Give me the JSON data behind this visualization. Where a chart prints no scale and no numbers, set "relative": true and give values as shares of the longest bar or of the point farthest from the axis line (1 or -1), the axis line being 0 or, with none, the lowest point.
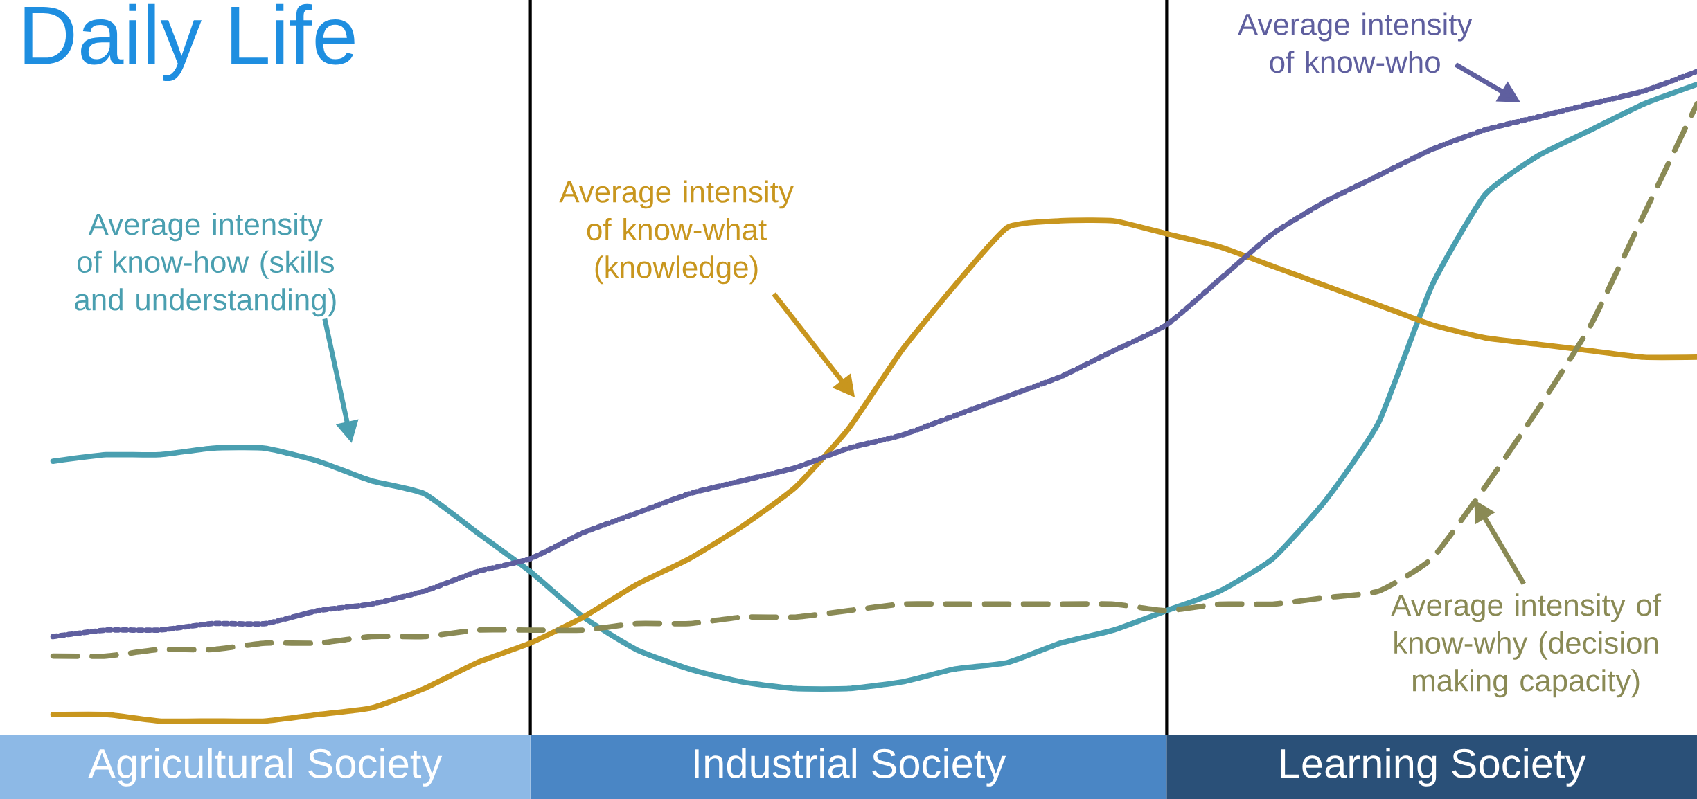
{
  "chart_data": {
    "type": "line",
    "relative": true,
    "title": "Daily Life",
    "marker": "none",
    "categories": [
      null,
      null,
      null,
      null,
      null,
      null,
      null,
      null,
      null,
      null,
      null,
      null,
      null,
      null,
      null,
      null,
      null,
      null,
      null,
      null,
      null,
      null,
      null,
      null,
      null,
      null,
      null,
      null,
      null,
      null,
      null,
      null,
      null
    ],
    "series": [
      {
        "color": "#4a9fb0",
        "line_style": "solid",
        "values": [
          null,
          0.4,
          0.41,
          0.41,
          0.42,
          0.42,
          0.4,
          0.37,
          0.35,
          0.29,
          0.23,
          0.16,
          0.11,
          0.08,
          0.06,
          0.05,
          0.05,
          0.06,
          0.08,
          0.09,
          0.12,
          0.14,
          0.17,
          0.2,
          0.25,
          0.34,
          0.46,
          0.67,
          0.81,
          0.87,
          0.91,
          0.95,
          0.98
        ]
      },
      {
        "color": "#c8961e",
        "line_style": "solid",
        "values": [
          null,
          0.01,
          0.01,
          0.0,
          0.0,
          0.0,
          0.01,
          0.02,
          0.05,
          0.09,
          0.12,
          0.16,
          0.21,
          0.25,
          0.3,
          0.36,
          0.45,
          0.57,
          0.67,
          0.76,
          0.77,
          0.77,
          0.75,
          0.73,
          0.7,
          0.67,
          0.64,
          0.61,
          0.59,
          0.58,
          0.57,
          0.56,
          0.56
        ]
      },
      {
        "color": "#5f5f9f",
        "line_style": "dotted",
        "values": [
          null,
          0.13,
          0.14,
          0.14,
          0.15,
          0.15,
          0.17,
          0.18,
          0.2,
          0.23,
          0.25,
          0.29,
          0.32,
          0.35,
          0.37,
          0.39,
          0.42,
          0.44,
          0.47,
          0.5,
          0.53,
          0.57,
          0.61,
          0.68,
          0.75,
          0.8,
          0.84,
          0.88,
          0.91,
          0.93,
          0.95,
          0.97,
          1
        ]
      },
      {
        "color": "#8a8a55",
        "line_style": "dashed",
        "values": [
          null,
          0.1,
          0.1,
          0.11,
          0.11,
          0.12,
          0.12,
          0.13,
          0.13,
          0.14,
          0.14,
          0.14,
          0.15,
          0.15,
          0.16,
          0.16,
          0.17,
          0.18,
          0.18,
          0.18,
          0.18,
          0.18,
          0.17,
          0.18,
          0.18,
          0.19,
          0.2,
          0.25,
          0.36,
          0.48,
          0.61,
          0.78,
          0.95
        ]
      }
    ],
    "annotations": [
      "Agricultural Society",
      "Industrial Society",
      "Learning Society",
      "Average intensity of know-how (skills and understanding)",
      "Average intensity of know-what (knowledge)",
      "Average intensity of know-who",
      "Average intensity of know-why (decision making capacity)"
    ]
  }
}
